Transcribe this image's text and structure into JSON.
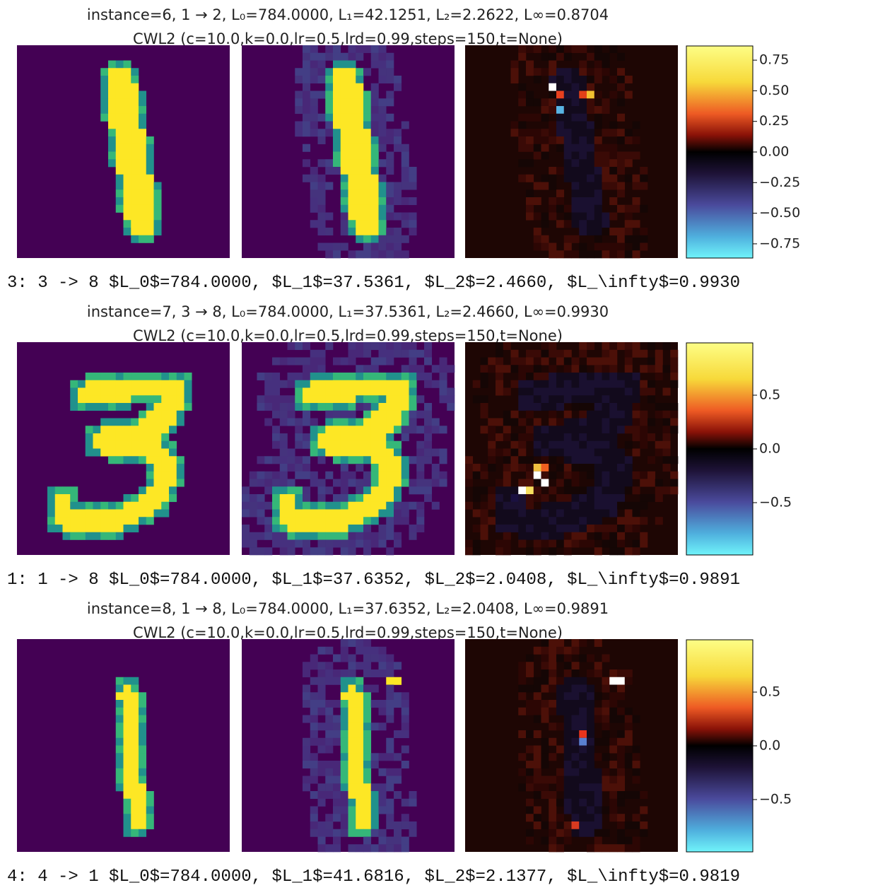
{
  "blocks": [
    {
      "title": "instance=6, 1 → 2, L₀=784.0000, L₁=42.1251, L₂=2.2622, L∞=0.8704",
      "subtitle": "CWL2 (c=10.0,k=0.0,lr=0.5,lrd=0.99,steps=150,t=None)",
      "colorbar_ticks": [
        "0.75",
        "0.50",
        "0.25",
        "0.00",
        "−0.25",
        "−0.50",
        "−0.75"
      ],
      "log": "3: 3 -> 8 $L_0$=784.0000, $L_1$=37.5361, $L_2$=2.4660, $L_\\infty$=0.9930"
    },
    {
      "title": "instance=7, 3 → 8, L₀=784.0000, L₁=37.5361, L₂=2.4660, L∞=0.9930",
      "subtitle": "CWL2 (c=10.0,k=0.0,lr=0.5,lrd=0.99,steps=150,t=None)",
      "colorbar_ticks": [
        "0.5",
        "0.0",
        "−0.5"
      ],
      "log": "1: 1 -> 8 $L_0$=784.0000, $L_1$=37.6352, $L_2$=2.0408, $L_\\infty$=0.9891"
    },
    {
      "title": "instance=8, 1 → 8, L₀=784.0000, L₁=37.6352, L₂=2.0408, L∞=0.9891",
      "subtitle": "CWL2 (c=10.0,k=0.0,lr=0.5,lrd=0.99,steps=150,t=None)",
      "colorbar_ticks": [
        "0.5",
        "0.0",
        "−0.5"
      ],
      "log": "4: 4 -> 1 $L_0$=784.0000, $L_1$=41.6816, $L_2$=2.1377, $L_\\infty$=0.9819"
    }
  ]
}
